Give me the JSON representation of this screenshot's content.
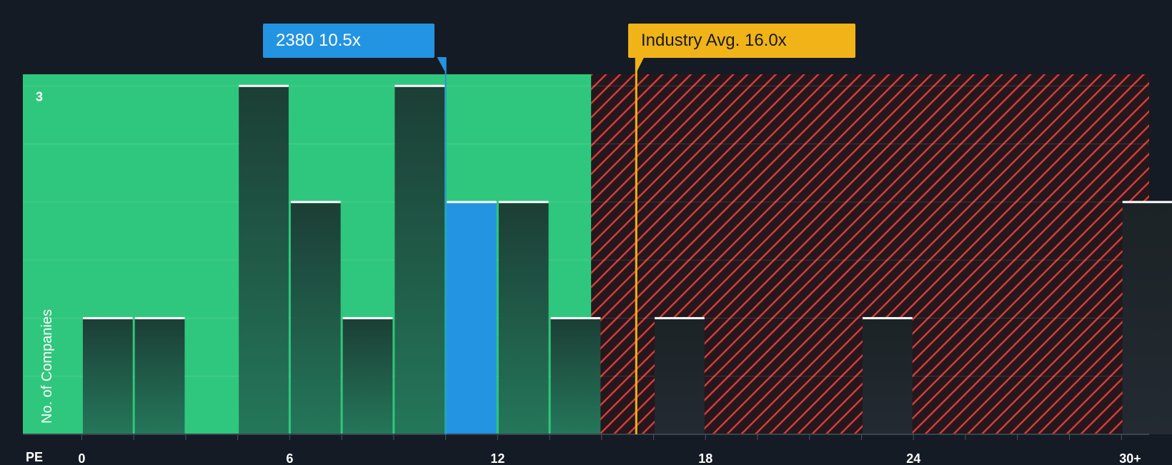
{
  "chart_data": {
    "type": "bar",
    "title": "",
    "xlabel": "PE",
    "ylabel": "No. of Companies",
    "xlim": [
      -1.7,
      30.8
    ],
    "ylim": [
      0,
      3.1
    ],
    "x_ticks": [
      "0",
      "6",
      "12",
      "18",
      "24",
      "30+"
    ],
    "x_tick_values": [
      0,
      6,
      12,
      18,
      24,
      30
    ],
    "y_ticks": [
      "3"
    ],
    "y_tick_values": [
      3
    ],
    "fair_zone_end": 14.7,
    "bins": [
      {
        "start": 0,
        "end": 1.5,
        "value": 1
      },
      {
        "start": 1.5,
        "end": 3.0,
        "value": 1
      },
      {
        "start": 4.5,
        "end": 6.0,
        "value": 3
      },
      {
        "start": 6.0,
        "end": 7.5,
        "value": 2
      },
      {
        "start": 7.5,
        "end": 9.0,
        "value": 1
      },
      {
        "start": 9.0,
        "end": 10.5,
        "value": 3
      },
      {
        "start": 10.5,
        "end": 12.0,
        "value": 2,
        "highlight": true
      },
      {
        "start": 12.0,
        "end": 13.5,
        "value": 2
      },
      {
        "start": 13.5,
        "end": 15.0,
        "value": 1
      },
      {
        "start": 16.5,
        "end": 18.0,
        "value": 1
      },
      {
        "start": 22.5,
        "end": 24.0,
        "value": 1
      },
      {
        "start": 30.0,
        "end": 31.5,
        "value": 2
      }
    ],
    "company": {
      "name": "2380",
      "value": 10.5,
      "label": "2380 10.5x"
    },
    "industry_avg": {
      "value": 16.0,
      "label": "Industry Avg. 16.0x"
    },
    "colors": {
      "background": "#151b24",
      "good_zone": "#2fc77d",
      "bad_zone": "#24181c",
      "hatch": "#d63a3a",
      "bar": "#1f4c3e",
      "highlight_bar": "#2394e2",
      "industry_line": "#f0b318",
      "bar_cap": "#ffffff"
    }
  }
}
